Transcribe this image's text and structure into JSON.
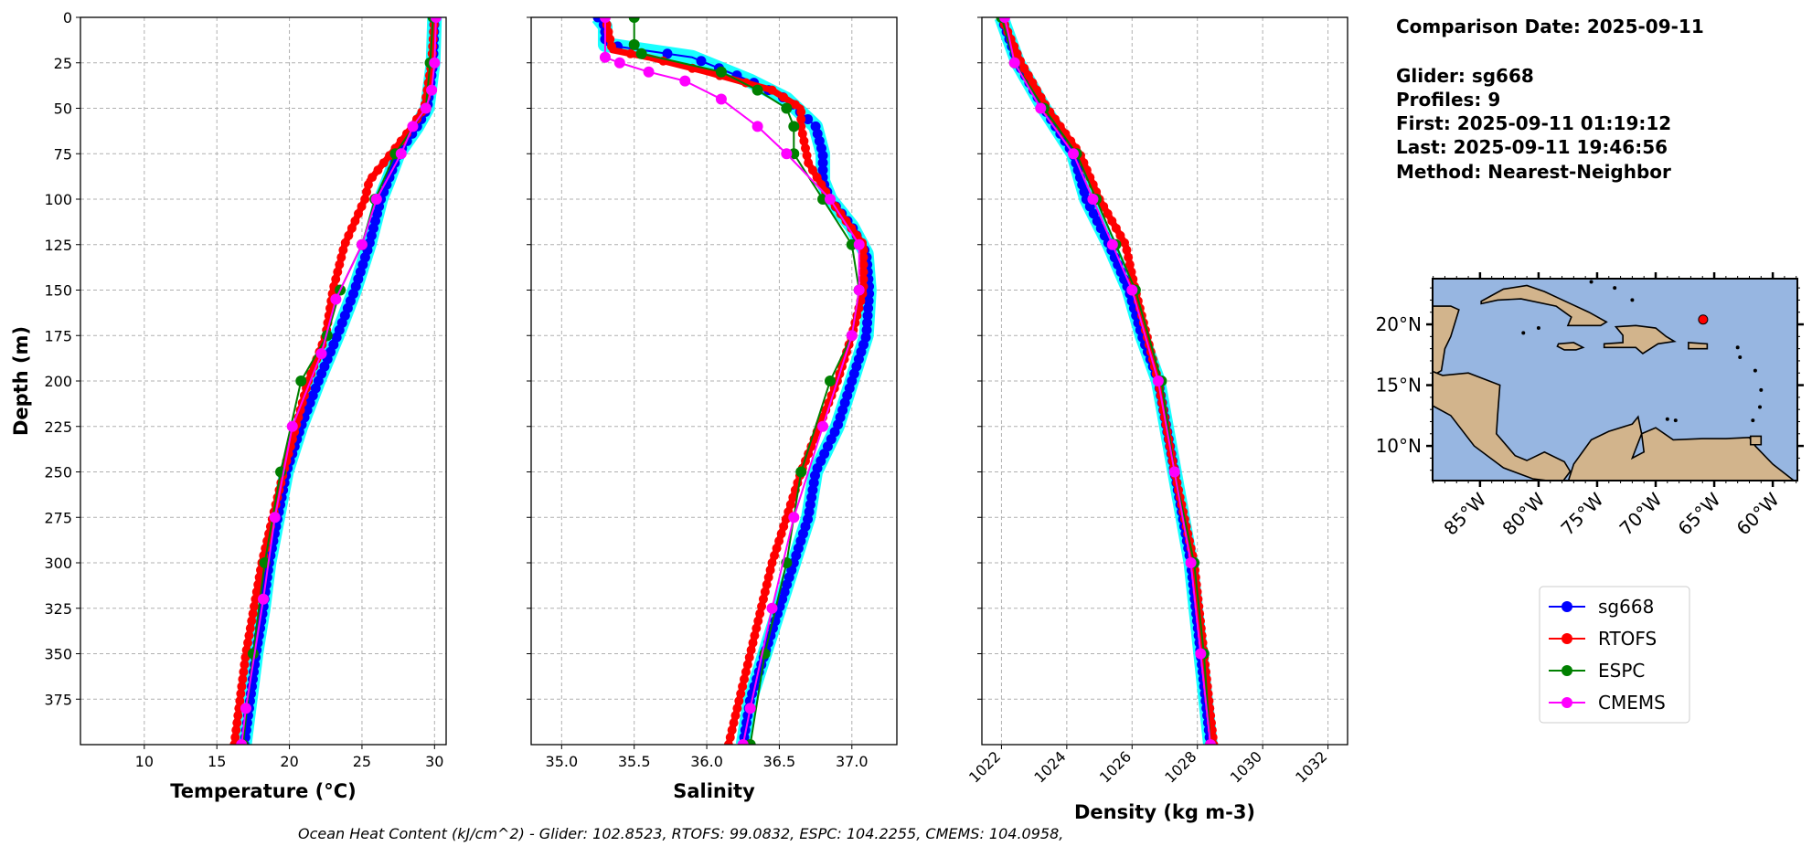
{
  "chart_data": [
    {
      "type": "line",
      "xlabel": "Temperature (°C)",
      "ylabel": "Depth (m)",
      "xlim": [
        5.6,
        30.8
      ],
      "ylim": [
        400,
        0
      ],
      "xticks": [
        10,
        15,
        20,
        25,
        30
      ],
      "yticks": [
        0,
        25,
        50,
        75,
        100,
        125,
        150,
        175,
        200,
        225,
        250,
        275,
        300,
        325,
        350,
        375
      ],
      "grid": true,
      "series": [
        {
          "name": "sg668",
          "depth": [
            0,
            25,
            50,
            60,
            75,
            90,
            100,
            125,
            150,
            175,
            200,
            225,
            250,
            275,
            300,
            325,
            350,
            375,
            400
          ],
          "values": [
            30.0,
            29.9,
            29.5,
            28.8,
            27.5,
            26.8,
            26.3,
            25.5,
            24.5,
            23.3,
            22.0,
            20.8,
            19.8,
            19.2,
            18.6,
            18.2,
            17.7,
            17.3,
            16.9
          ]
        },
        {
          "name": "RTOFS",
          "depth": [
            0,
            25,
            50,
            65,
            80,
            90,
            100,
            125,
            150,
            175,
            200,
            250,
            300,
            350,
            400
          ],
          "values": [
            30.0,
            29.8,
            29.3,
            28.0,
            26.5,
            25.5,
            25.2,
            23.8,
            23.0,
            22.5,
            21.3,
            19.6,
            18.1,
            17.0,
            16.2
          ]
        },
        {
          "name": "ESPC",
          "depth": [
            0,
            25,
            50,
            75,
            100,
            125,
            150,
            175,
            200,
            250,
            300,
            350,
            400
          ],
          "values": [
            29.9,
            29.7,
            29.4,
            27.3,
            25.9,
            25.0,
            23.5,
            22.6,
            20.8,
            19.4,
            18.3,
            17.5,
            16.8
          ]
        },
        {
          "name": "CMEMS",
          "depth": [
            0,
            25,
            40,
            50,
            60,
            75,
            100,
            125,
            155,
            185,
            225,
            275,
            320,
            380,
            400
          ],
          "values": [
            30.1,
            30.0,
            29.8,
            29.4,
            28.5,
            27.7,
            26.0,
            25.0,
            23.2,
            22.2,
            20.2,
            19.0,
            18.2,
            17.0,
            16.7
          ]
        }
      ]
    },
    {
      "type": "line",
      "xlabel": "Salinity",
      "xlim": [
        34.79,
        37.31
      ],
      "ylim": [
        400,
        0
      ],
      "xticks": [
        "35.0",
        "35.5",
        "36.0",
        "36.5",
        "37.0"
      ],
      "grid": true,
      "series": [
        {
          "name": "sg668",
          "depth": [
            0,
            5,
            15,
            22,
            35,
            45,
            60,
            75,
            90,
            100,
            115,
            130,
            150,
            175,
            200,
            225,
            250,
            275,
            300,
            325,
            350,
            375,
            400
          ],
          "values": [
            35.25,
            35.3,
            35.3,
            35.9,
            36.3,
            36.55,
            36.75,
            36.8,
            36.8,
            36.85,
            37.0,
            37.1,
            37.12,
            37.1,
            37.0,
            36.9,
            36.75,
            36.7,
            36.6,
            36.5,
            36.4,
            36.3,
            36.25
          ]
        },
        {
          "name": "RTOFS",
          "depth": [
            0,
            18,
            22,
            30,
            40,
            50,
            60,
            80,
            100,
            125,
            150,
            175,
            200,
            250,
            300,
            350,
            400
          ],
          "values": [
            35.3,
            35.35,
            35.6,
            36.0,
            36.45,
            36.65,
            36.65,
            36.7,
            36.85,
            37.08,
            37.08,
            37.0,
            36.9,
            36.65,
            36.45,
            36.3,
            36.15
          ]
        },
        {
          "name": "ESPC",
          "depth": [
            0,
            15,
            20,
            30,
            40,
            50,
            60,
            75,
            100,
            125,
            150,
            175,
            200,
            250,
            300,
            350,
            400
          ],
          "values": [
            35.5,
            35.5,
            35.55,
            36.1,
            36.35,
            36.55,
            36.6,
            36.6,
            36.8,
            37.0,
            37.05,
            37.0,
            36.85,
            36.65,
            36.55,
            36.4,
            36.3
          ]
        },
        {
          "name": "CMEMS",
          "depth": [
            0,
            22,
            25,
            30,
            35,
            45,
            60,
            75,
            100,
            125,
            150,
            175,
            225,
            275,
            325,
            380,
            400
          ],
          "values": [
            35.3,
            35.3,
            35.4,
            35.6,
            35.85,
            36.1,
            36.35,
            36.55,
            36.85,
            37.05,
            37.05,
            37.0,
            36.8,
            36.6,
            36.45,
            36.3,
            36.25
          ]
        }
      ]
    },
    {
      "type": "line",
      "xlabel": "Density (kg m-3)",
      "xlim": [
        1021.4,
        1032.6
      ],
      "ylim": [
        400,
        0
      ],
      "xticks": [
        1022,
        1024,
        1026,
        1028,
        1030,
        1032
      ],
      "grid": true,
      "series": [
        {
          "name": "sg668",
          "depth": [
            0,
            25,
            50,
            75,
            100,
            125,
            150,
            175,
            200,
            250,
            300,
            350,
            400
          ],
          "values": [
            1022.0,
            1022.5,
            1023.3,
            1024.2,
            1024.6,
            1025.3,
            1025.9,
            1026.3,
            1026.8,
            1027.3,
            1027.8,
            1028.1,
            1028.4
          ]
        },
        {
          "name": "RTOFS",
          "depth": [
            0,
            25,
            50,
            75,
            100,
            125,
            150,
            200,
            250,
            300,
            350,
            400
          ],
          "values": [
            1022.0,
            1022.6,
            1023.4,
            1024.4,
            1025.0,
            1025.8,
            1026.1,
            1026.8,
            1027.3,
            1027.9,
            1028.2,
            1028.5
          ]
        },
        {
          "name": "ESPC",
          "depth": [
            0,
            25,
            50,
            75,
            100,
            125,
            150,
            200,
            250,
            300,
            350,
            400
          ],
          "values": [
            1022.0,
            1022.4,
            1023.3,
            1024.3,
            1024.9,
            1025.5,
            1026.1,
            1026.9,
            1027.3,
            1027.9,
            1028.2,
            1028.4
          ]
        },
        {
          "name": "CMEMS",
          "depth": [
            0,
            25,
            50,
            75,
            100,
            125,
            150,
            200,
            250,
            300,
            350,
            400
          ],
          "values": [
            1022.1,
            1022.4,
            1023.2,
            1024.2,
            1024.8,
            1025.4,
            1026.0,
            1026.8,
            1027.3,
            1027.8,
            1028.1,
            1028.4
          ]
        }
      ]
    },
    {
      "type": "map",
      "lon_range": [
        -89.05,
        -57.9
      ],
      "lat_range": [
        7.15,
        23.76
      ],
      "lon_ticks": [
        "85°W",
        "80°W",
        "75°W",
        "70°W",
        "65°W",
        "60°W"
      ],
      "lon_tick_values": [
        -85,
        -80,
        -75,
        -70,
        -65,
        -60
      ],
      "lat_ticks": [
        "10°N",
        "15°N",
        "20°N"
      ],
      "lat_tick_values": [
        10,
        15,
        20
      ],
      "glider_position": {
        "lon": -65.95,
        "lat": 20.4
      },
      "ocean_color": "#97b6e1",
      "land_color": "#d2b48c"
    }
  ],
  "series_colors": {
    "sg668": "#0000ff",
    "RTOFS": "#ff0000",
    "ESPC": "#008000",
    "CMEMS": "#ff00ff",
    "glider_profiles": "#00ffff"
  },
  "legend": {
    "placement": "right",
    "entries": [
      "sg668",
      "RTOFS",
      "ESPC",
      "CMEMS"
    ]
  },
  "info": {
    "comparison_date": "Comparison Date: 2025-09-11",
    "glider": "Glider: sg668",
    "profiles": "Profiles: 9",
    "first": "First: 2025-09-11 01:19:12",
    "last": "Last: 2025-09-11 19:46:56",
    "method": "Method: Nearest-Neighbor"
  },
  "footer": "Ocean Heat Content (kJ/cm^2) - Glider: 102.8523,  RTOFS: 99.0832,  ESPC: 104.2255,  CMEMS: 104.0958,"
}
